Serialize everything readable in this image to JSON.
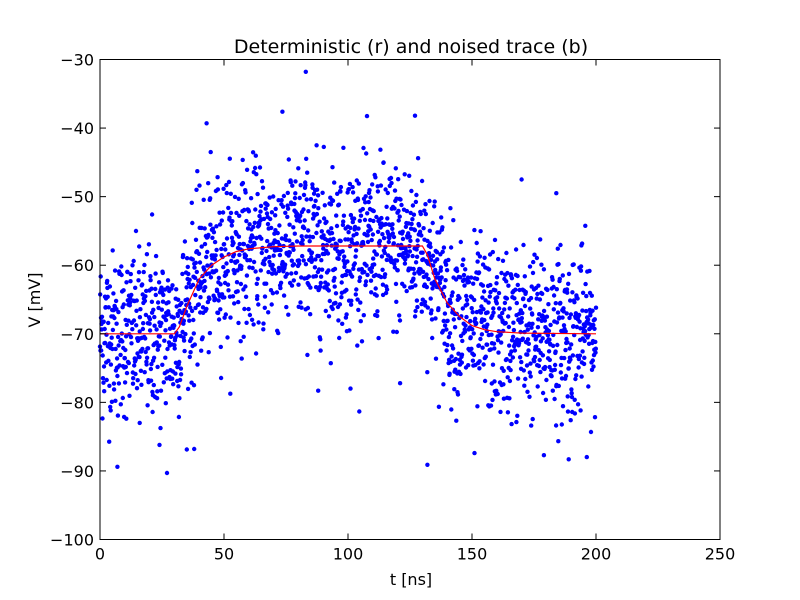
{
  "chart_data": {
    "type": "scatter",
    "title": "Deterministic (r) and noised trace (b)",
    "xlabel": "t [ns]",
    "ylabel": "V [mV]",
    "xlim": [
      0,
      250
    ],
    "ylim": [
      -100,
      -30
    ],
    "xticks": [
      0,
      50,
      100,
      150,
      200,
      250
    ],
    "yticks": [
      -100,
      -90,
      -80,
      -70,
      -60,
      -50,
      -40,
      -30
    ],
    "grid": false,
    "series": [
      {
        "kind": "line",
        "color": "#ff0000",
        "x": [
          0,
          30,
          32,
          35,
          40,
          45,
          50,
          55,
          60,
          70,
          80,
          100,
          110,
          120,
          130,
          132,
          135,
          140,
          145,
          150,
          155,
          160,
          170,
          200
        ],
        "y": [
          -70,
          -70,
          -69,
          -66,
          -62,
          -60,
          -58.8,
          -58,
          -57.6,
          -57.3,
          -57.2,
          -57.2,
          -57.2,
          -57.2,
          -57.2,
          -58.5,
          -62,
          -65.5,
          -67.5,
          -68.8,
          -69.4,
          -69.7,
          -69.9,
          -70
        ]
      },
      {
        "kind": "points",
        "color": "#0000ff",
        "noise_sd": 6,
        "t_range": [
          0,
          200
        ],
        "count": 2000,
        "outliers": [
          {
            "x": 83,
            "y": -31.8
          },
          {
            "x": 43,
            "y": -39.3
          },
          {
            "x": 127,
            "y": -38.2
          },
          {
            "x": 27,
            "y": -90.3
          },
          {
            "x": 7,
            "y": -89.4
          },
          {
            "x": 132,
            "y": -89.1
          },
          {
            "x": 24,
            "y": -86.2
          },
          {
            "x": 151,
            "y": -87.4
          },
          {
            "x": 179,
            "y": -87.7
          },
          {
            "x": 189,
            "y": -88.3
          },
          {
            "x": 101,
            "y": -78
          },
          {
            "x": 88,
            "y": -78.3
          },
          {
            "x": 121,
            "y": -77.2
          },
          {
            "x": 184,
            "y": -49.5
          },
          {
            "x": 170,
            "y": -47.5
          },
          {
            "x": 21,
            "y": -52.6
          },
          {
            "x": 38,
            "y": -86.8
          },
          {
            "x": 16,
            "y": -83
          }
        ]
      }
    ]
  }
}
